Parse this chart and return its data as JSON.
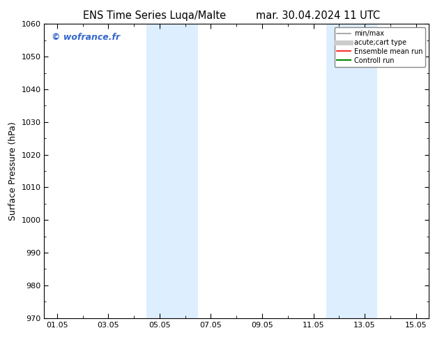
{
  "title_left": "ENS Time Series Luqa/Malte",
  "title_right": "mar. 30.04.2024 11 UTC",
  "ylabel": "Surface Pressure (hPa)",
  "ylim": [
    970,
    1060
  ],
  "yticks": [
    970,
    980,
    990,
    1000,
    1010,
    1020,
    1030,
    1040,
    1050,
    1060
  ],
  "xtick_labels": [
    "01.05",
    "03.05",
    "05.05",
    "07.05",
    "09.05",
    "11.05",
    "13.05",
    "15.05"
  ],
  "xtick_positions": [
    0,
    2,
    4,
    6,
    8,
    10,
    12,
    14
  ],
  "xlim": [
    -0.5,
    14.5
  ],
  "shade_bands": [
    {
      "xmin": 3.5,
      "xmax": 4.5,
      "color": "#ddeeff"
    },
    {
      "xmin": 4.5,
      "xmax": 5.5,
      "color": "#ddeeff"
    },
    {
      "xmin": 10.5,
      "xmax": 11.5,
      "color": "#ddeeff"
    },
    {
      "xmin": 11.5,
      "xmax": 12.5,
      "color": "#ddeeff"
    }
  ],
  "watermark": "© wofrance.fr",
  "watermark_color": "#3366cc",
  "legend_entries": [
    {
      "label": "min/max",
      "color": "#999999",
      "lw": 1.2
    },
    {
      "label": "acute;cart type",
      "color": "#cccccc",
      "lw": 5
    },
    {
      "label": "Ensemble mean run",
      "color": "#ff0000",
      "lw": 1.2
    },
    {
      "label": "Controll run",
      "color": "#008800",
      "lw": 1.5
    }
  ],
  "bg_color": "#ffffff",
  "title_fontsize": 10.5,
  "ylabel_fontsize": 9,
  "tick_fontsize": 8,
  "watermark_fontsize": 9,
  "legend_fontsize": 7
}
